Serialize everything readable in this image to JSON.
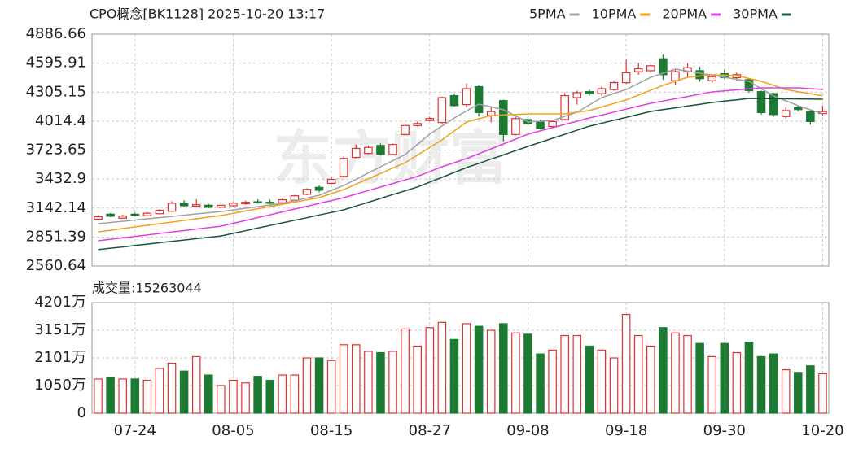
{
  "chart_data": {
    "type": "candlestick",
    "title": "CPO概念[BK1128] 2025-10-20 13:17",
    "watermark": "东方财富",
    "legend": "top-right",
    "grid": true,
    "up_color": "#e3302e",
    "down_color": "#1d7a33",
    "categories": [
      null,
      null,
      null,
      "07-24",
      null,
      null,
      null,
      null,
      null,
      null,
      null,
      "08-05",
      null,
      null,
      null,
      null,
      null,
      null,
      null,
      "08-15",
      null,
      null,
      null,
      null,
      null,
      null,
      null,
      "08-27",
      null,
      null,
      null,
      null,
      null,
      null,
      null,
      "09-08",
      null,
      null,
      null,
      null,
      null,
      null,
      null,
      "09-18",
      null,
      null,
      null,
      null,
      null,
      null,
      null,
      "09-30",
      null,
      null,
      null,
      null,
      null,
      null,
      null,
      "10-20"
    ],
    "open": [
      3030,
      3080,
      3040,
      3080,
      3065,
      3085,
      3110,
      3190,
      3160,
      3170,
      3150,
      3165,
      3185,
      3205,
      3200,
      3195,
      3220,
      3280,
      3350,
      3390,
      3460,
      3650,
      3690,
      3770,
      3680,
      3880,
      3970,
      4020,
      4000,
      4270,
      4180,
      4360,
      4070,
      4220,
      3880,
      4030,
      4010,
      3960,
      4030,
      4250,
      4310,
      4290,
      4330,
      4400,
      4510,
      4520,
      4640,
      4420,
      4510,
      4520,
      4420,
      4490,
      4450,
      4430,
      4310,
      4290,
      4060,
      4150,
      4110,
      4090
    ],
    "high": [
      3070,
      3090,
      3075,
      3095,
      3100,
      3130,
      3210,
      3220,
      3230,
      3185,
      3175,
      3200,
      3215,
      3230,
      3225,
      3240,
      3275,
      3340,
      3370,
      3450,
      3660,
      3780,
      3770,
      3790,
      3790,
      3990,
      4010,
      4060,
      4260,
      4290,
      4390,
      4380,
      4150,
      4230,
      4060,
      4060,
      4030,
      4030,
      4300,
      4320,
      4330,
      4360,
      4420,
      4630,
      4600,
      4580,
      4680,
      4530,
      4600,
      4560,
      4480,
      4530,
      4500,
      4440,
      4320,
      4300,
      4150,
      4170,
      4130,
      4170
    ],
    "low": [
      3020,
      3050,
      3035,
      3060,
      3060,
      3080,
      3105,
      3150,
      3155,
      3140,
      3140,
      3160,
      3175,
      3185,
      3180,
      3190,
      3215,
      3270,
      3300,
      3380,
      3450,
      3640,
      3680,
      3670,
      3675,
      3870,
      3960,
      4010,
      3990,
      4160,
      4150,
      4060,
      4000,
      3810,
      3870,
      3970,
      3930,
      3950,
      4020,
      4180,
      4270,
      4270,
      4320,
      4390,
      4480,
      4500,
      4430,
      4380,
      4450,
      4410,
      4400,
      4440,
      4420,
      4300,
      4080,
      4060,
      4040,
      4110,
      3980,
      4070
    ],
    "close": [
      3055,
      3060,
      3060,
      3070,
      3090,
      3120,
      3190,
      3165,
      3175,
      3150,
      3170,
      3190,
      3200,
      3195,
      3190,
      3225,
      3265,
      3330,
      3320,
      3430,
      3640,
      3740,
      3750,
      3680,
      3780,
      3970,
      3990,
      4040,
      4250,
      4170,
      4340,
      4100,
      4110,
      3880,
      4040,
      3990,
      3940,
      4010,
      4270,
      4300,
      4290,
      4340,
      4400,
      4500,
      4540,
      4570,
      4480,
      4510,
      4550,
      4440,
      4460,
      4450,
      4480,
      4320,
      4100,
      4080,
      4120,
      4130,
      4010,
      4110
    ],
    "series": [
      {
        "name": "5PMA",
        "color": "#a0a0a0",
        "values": [
          2985,
          2997,
          3009,
          3022,
          3034,
          3046,
          3058,
          3070,
          3083,
          3095,
          3107,
          3123,
          3140,
          3156,
          3173,
          3189,
          3216,
          3243,
          3270,
          3320,
          3369,
          3431,
          3494,
          3556,
          3617,
          3678,
          3781,
          3883,
          3965,
          4046,
          4116,
          4185,
          4157,
          4128,
          4067,
          4005,
          4013,
          4021,
          4062,
          4103,
          4177,
          4250,
          4291,
          4332,
          4393,
          4454,
          4495,
          4536,
          4516,
          4495,
          4475,
          4454,
          4434,
          4413,
          4340,
          4267,
          4218,
          4169,
          4128,
          4087
        ]
      },
      {
        "name": "10PMA",
        "color": "#eea21c",
        "values": [
          2903,
          2919,
          2936,
          2952,
          2969,
          2985,
          3001,
          3018,
          3034,
          3051,
          3067,
          3089,
          3112,
          3134,
          3157,
          3179,
          3201,
          3224,
          3246,
          3287,
          3328,
          3382,
          3436,
          3489,
          3543,
          3597,
          3673,
          3750,
          3826,
          3916,
          4005,
          4038,
          4070,
          4076,
          4081,
          4087,
          4087,
          4087,
          4087,
          4104,
          4120,
          4155,
          4191,
          4226,
          4275,
          4324,
          4373,
          4414,
          4454,
          4467,
          4479,
          4475,
          4471,
          4442,
          4413,
          4373,
          4332,
          4310,
          4289,
          4267
        ]
      },
      {
        "name": "20PMA",
        "color": "#e23fe2",
        "values": [
          2814,
          2829,
          2843,
          2858,
          2872,
          2887,
          2902,
          2916,
          2931,
          2945,
          2960,
          2989,
          3017,
          3046,
          3074,
          3103,
          3132,
          3160,
          3189,
          3217,
          3246,
          3282,
          3317,
          3353,
          3388,
          3424,
          3459,
          3508,
          3556,
          3597,
          3638,
          3687,
          3736,
          3785,
          3834,
          3883,
          3916,
          3948,
          3981,
          4013,
          4046,
          4075,
          4105,
          4134,
          4164,
          4193,
          4216,
          4239,
          4261,
          4284,
          4307,
          4317,
          4328,
          4338,
          4348,
          4348,
          4348,
          4348,
          4340,
          4332
        ]
      },
      {
        "name": "30PMA",
        "color": "#16563a",
        "values": [
          2725,
          2739,
          2752,
          2766,
          2780,
          2794,
          2807,
          2821,
          2835,
          2848,
          2862,
          2888,
          2914,
          2941,
          2967,
          2993,
          3019,
          3045,
          3072,
          3098,
          3124,
          3162,
          3200,
          3239,
          3277,
          3315,
          3353,
          3402,
          3450,
          3499,
          3548,
          3590,
          3633,
          3675,
          3718,
          3760,
          3801,
          3842,
          3882,
          3923,
          3964,
          3993,
          4023,
          4052,
          4082,
          4111,
          4129,
          4147,
          4165,
          4183,
          4201,
          4215,
          4228,
          4242,
          4241,
          4239,
          4238,
          4237,
          4235,
          4234
        ]
      }
    ],
    "ylim": [
      2560.64,
      4886.66
    ],
    "yticks": [
      2560.64,
      2851.39,
      3142.14,
      3432.9,
      3723.65,
      4014.4,
      4305.15,
      4595.91,
      4886.66
    ],
    "volume": {
      "label": "成交量:15263044",
      "values": [
        1300,
        1350,
        1300,
        1300,
        1250,
        1700,
        1900,
        1600,
        2150,
        1450,
        1050,
        1250,
        1150,
        1400,
        1250,
        1450,
        1450,
        2100,
        2100,
        2000,
        2600,
        2600,
        2350,
        2300,
        2350,
        3200,
        2550,
        3250,
        3450,
        2800,
        3400,
        3300,
        3150,
        3400,
        3050,
        3000,
        2250,
        2400,
        2950,
        2950,
        2550,
        2400,
        2100,
        3750,
        2950,
        2550,
        3250,
        3050,
        2950,
        2650,
        2150,
        2650,
        2300,
        2700,
        2150,
        2250,
        1650,
        1550,
        1800,
        1500
      ],
      "ylim": [
        0,
        4201
      ],
      "yticks": [
        0,
        {
          "value": 1050,
          "label": "1050万"
        },
        {
          "value": 2101,
          "label": "2101万"
        },
        {
          "value": 3151,
          "label": "3151万"
        },
        {
          "value": 4201,
          "label": "4201万"
        }
      ]
    }
  }
}
